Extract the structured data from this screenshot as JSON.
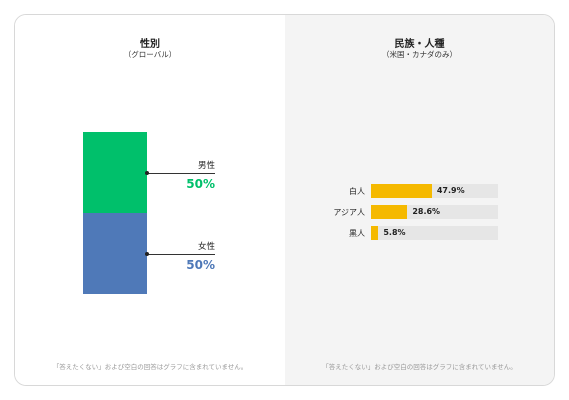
{
  "left": {
    "title": "性別",
    "subtitle": "（グローバル）",
    "footnote": "「答えたくない」および空白の回答はグラフに含まれていません。"
  },
  "right": {
    "title": "民族・人種",
    "subtitle": "（米国・カナダのみ）",
    "footnote": "「答えたくない」および空白の回答はグラフに含まれていません。"
  },
  "colors": {
    "male": "#00c06b",
    "female": "#4f79b8",
    "ethnicity": "#f5b900"
  },
  "chart_data": [
    {
      "type": "bar",
      "title": "性別",
      "subtitle": "（グローバル）",
      "categories": [
        "男性",
        "女性"
      ],
      "values": [
        50,
        50
      ],
      "value_labels": [
        "50%",
        "50%"
      ],
      "stacked": true
    },
    {
      "type": "bar",
      "title": "民族・人種",
      "subtitle": "（米国・カナダのみ）",
      "orientation": "horizontal",
      "categories": [
        "白人",
        "アジア人",
        "黒人"
      ],
      "values": [
        47.9,
        28.6,
        5.8
      ],
      "value_labels": [
        "47.9%",
        "28.6%",
        "5.8%"
      ]
    }
  ]
}
